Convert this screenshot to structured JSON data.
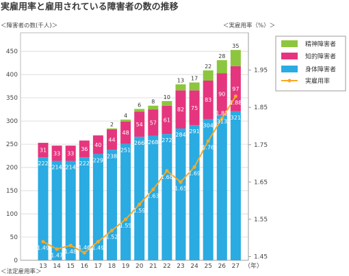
{
  "chart_data": {
    "type": "bar",
    "stacked": true,
    "title": "実雇用率と雇用されている障害者の数の推移",
    "ylabel": "＜障害者の数(千人)＞",
    "y2label": "＜実雇用率（%）＞",
    "xlabel": "（年）",
    "categories": [
      "13",
      "14",
      "15",
      "16",
      "17",
      "18",
      "19",
      "20",
      "21",
      "22",
      "23",
      "24",
      "25",
      "26",
      "27"
    ],
    "series": [
      {
        "name": "身体障害者",
        "type": "bar",
        "axis": "left",
        "color": "#2aabe2",
        "values": [
          222,
          214,
          214,
          222,
          229,
          238,
          251,
          266,
          268,
          272,
          284,
          291,
          304,
          313,
          321
        ]
      },
      {
        "name": "知的障害者",
        "type": "bar",
        "axis": "left",
        "color": "#e5357e",
        "values": [
          31,
          33,
          33,
          36,
          40,
          44,
          48,
          54,
          57,
          61,
          82,
          75,
          83,
          90,
          97
        ]
      },
      {
        "name": "精神障害者",
        "type": "bar",
        "axis": "left",
        "color": "#8cc63e",
        "values": [
          null,
          null,
          null,
          null,
          null,
          2,
          4,
          6,
          8,
          10,
          13,
          17,
          22,
          28,
          35
        ]
      },
      {
        "name": "実雇用率",
        "type": "line",
        "axis": "right",
        "color": "#f6a926",
        "values": [
          1.49,
          1.47,
          1.48,
          1.46,
          1.49,
          1.52,
          1.55,
          1.59,
          1.63,
          1.68,
          1.65,
          1.69,
          1.76,
          1.82,
          1.88
        ]
      }
    ],
    "ylim": [
      0,
      490
    ],
    "yticks": [
      0,
      50,
      100,
      150,
      200,
      250,
      300,
      350,
      400,
      450
    ],
    "y2lim": [
      1.44,
      2.05
    ],
    "y2ticks": [
      1.45,
      1.55,
      1.65,
      1.75,
      1.85,
      1.95
    ],
    "grid": true,
    "legend": "right"
  },
  "footnote": "＜法定雇用率＞"
}
